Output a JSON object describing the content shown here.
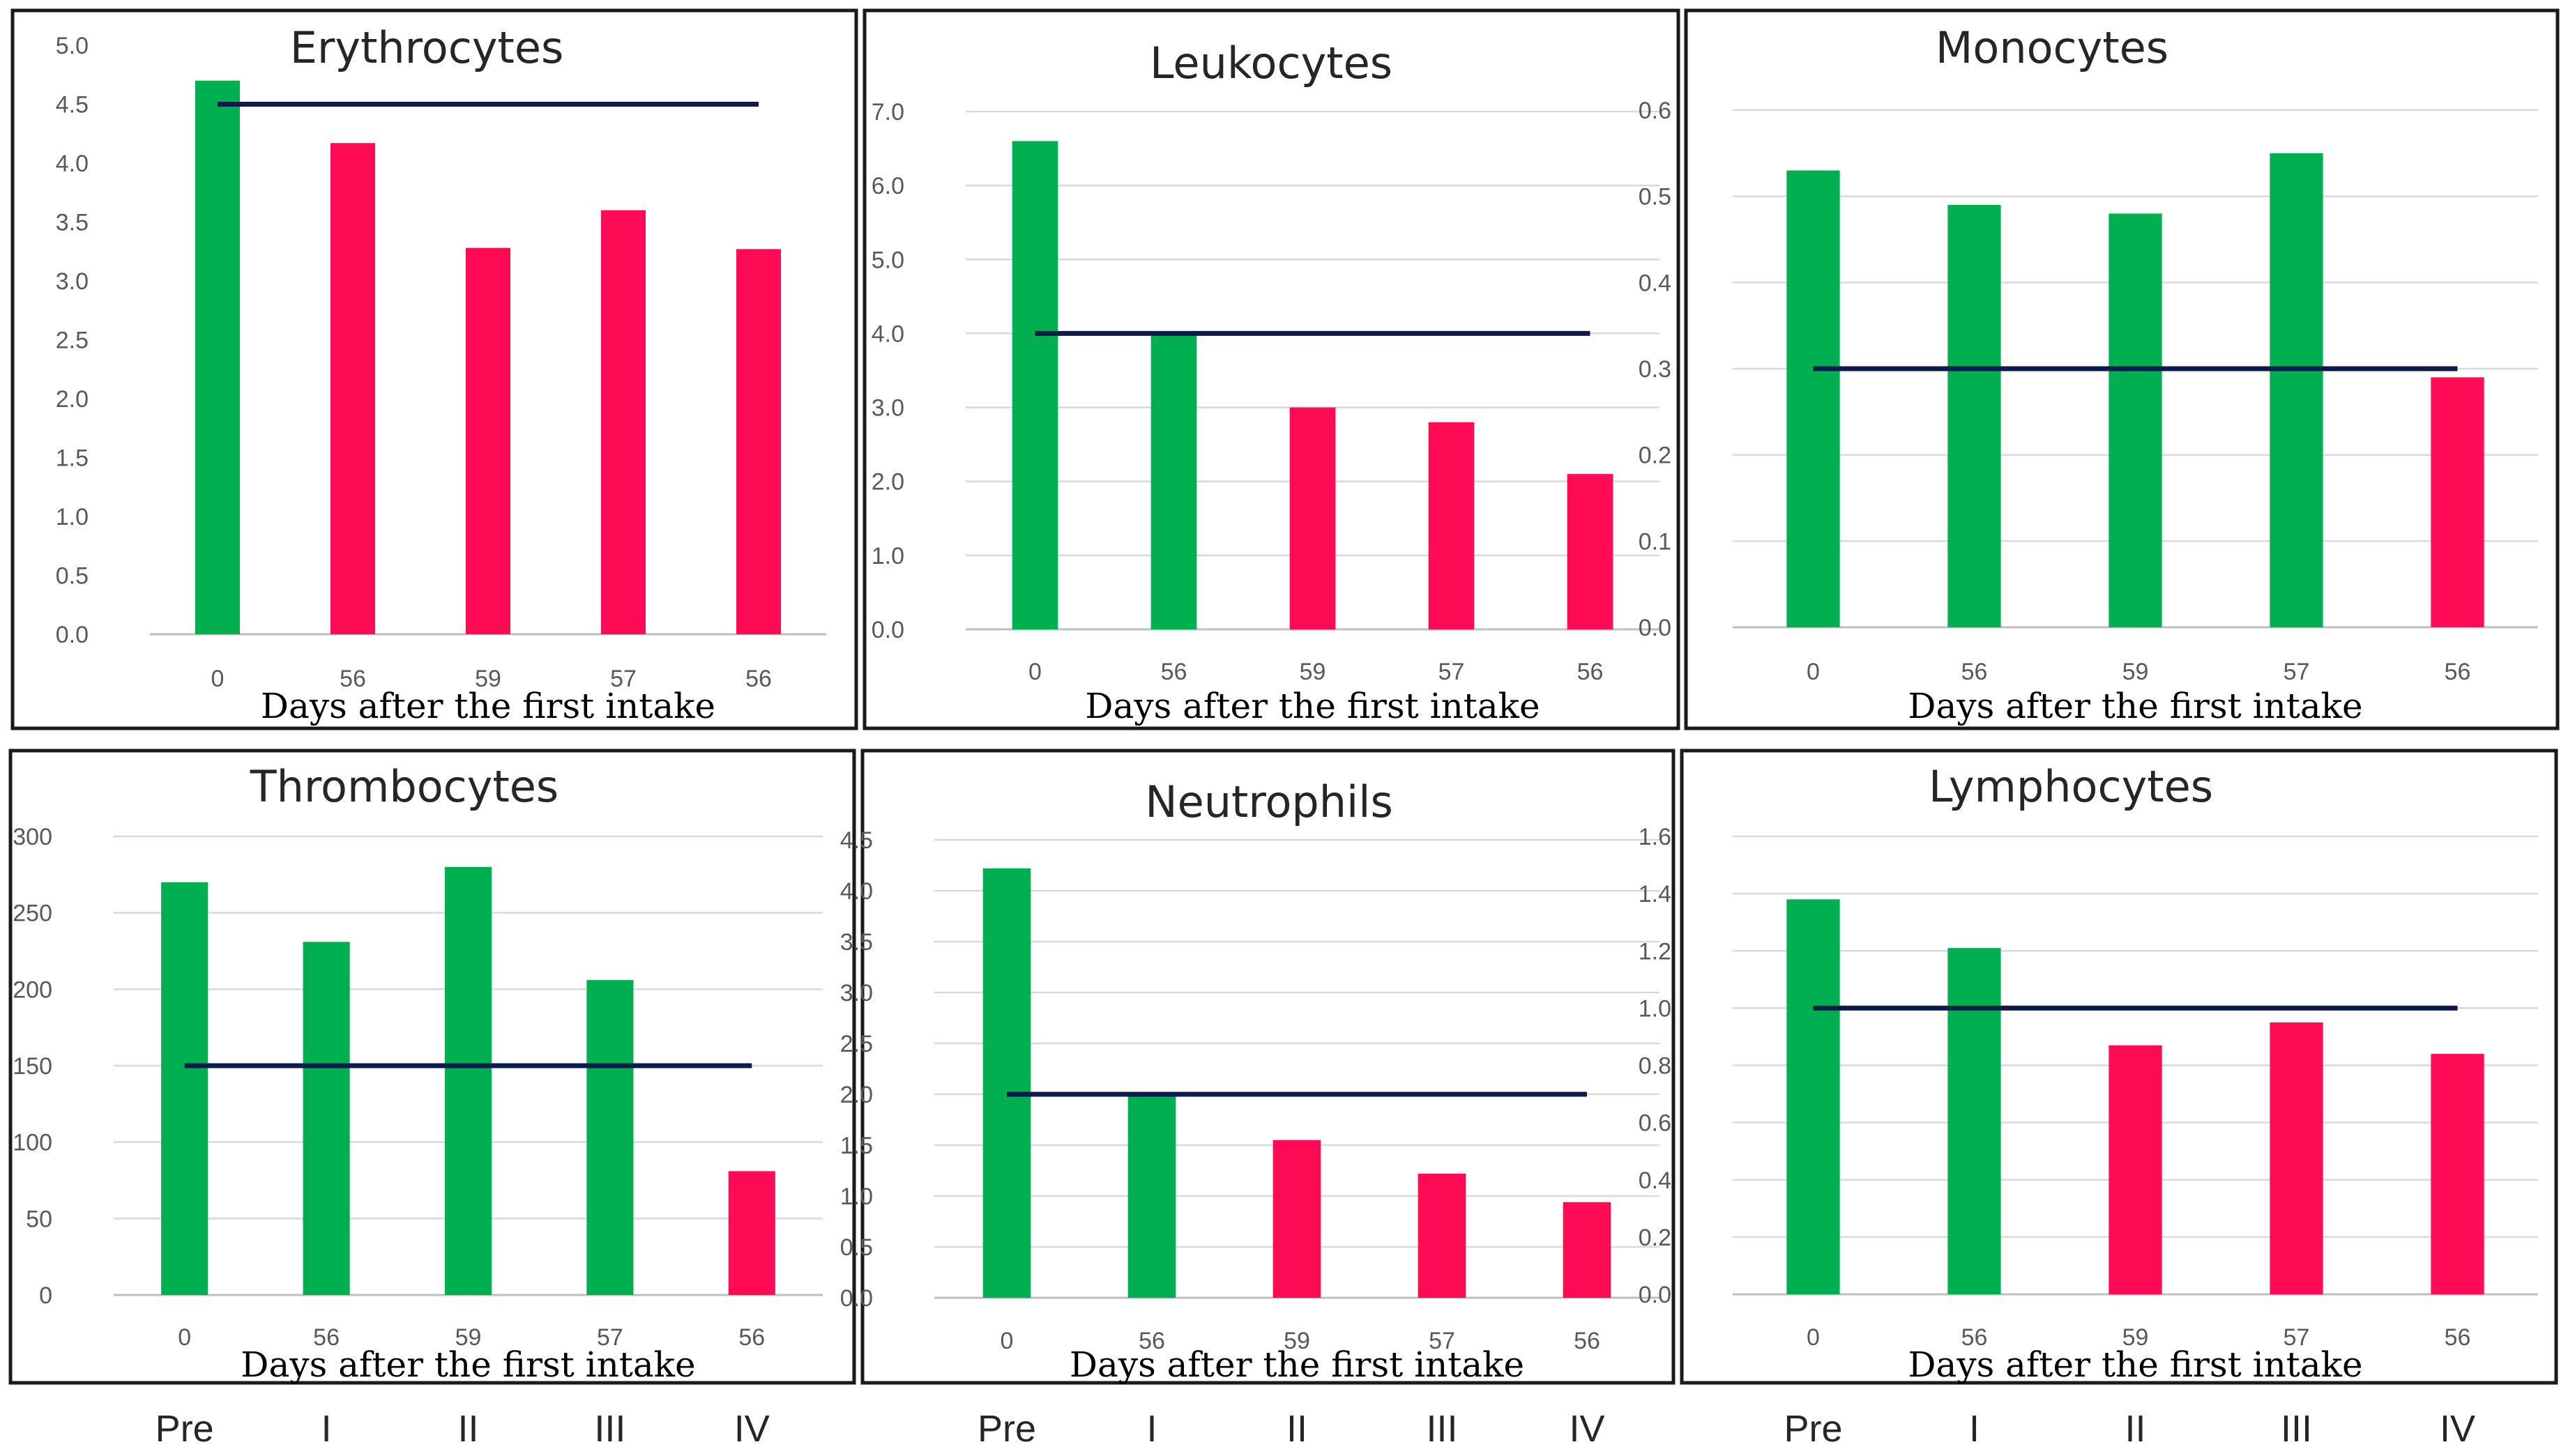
{
  "colors": {
    "above_reference": "#00b050",
    "below_reference": "#ff0a55",
    "reference_line": "#0d1b4c"
  },
  "phase_labels": [
    "Pre",
    "I",
    "II",
    "III",
    "IV"
  ],
  "chart_data": [
    {
      "type": "bar",
      "title": "Erythrocytes",
      "xlabel": "Days after the first intake",
      "ylabel": "",
      "categories": [
        "0",
        "56",
        "59",
        "57",
        "56"
      ],
      "values": [
        4.7,
        4.17,
        3.28,
        3.6,
        3.27
      ],
      "bar_colors": [
        "green",
        "red",
        "red",
        "red",
        "red"
      ],
      "reference_value": 4.5,
      "ylim": [
        0,
        5
      ],
      "yticks": [
        "0.0",
        "0.5",
        "1.0",
        "1.5",
        "2.0",
        "2.5",
        "3.0",
        "3.5",
        "4.0",
        "4.5",
        "5.0"
      ],
      "grid": false
    },
    {
      "type": "bar",
      "title": "Leukocytes",
      "xlabel": "Days after the first intake",
      "ylabel": "",
      "categories": [
        "0",
        "56",
        "59",
        "57",
        "56"
      ],
      "values": [
        6.6,
        4.0,
        3.0,
        2.8,
        2.1
      ],
      "bar_colors": [
        "green",
        "green",
        "red",
        "red",
        "red"
      ],
      "reference_value": 4.0,
      "ylim": [
        0,
        7
      ],
      "yticks": [
        "0.0",
        "1.0",
        "2.0",
        "3.0",
        "4.0",
        "5.0",
        "6.0",
        "7.0"
      ],
      "grid": true
    },
    {
      "type": "bar",
      "title": "Monocytes",
      "xlabel": "Days after the first intake",
      "ylabel": "",
      "categories": [
        "0",
        "56",
        "59",
        "57",
        "56"
      ],
      "values": [
        0.53,
        0.49,
        0.48,
        0.55,
        0.29
      ],
      "bar_colors": [
        "green",
        "green",
        "green",
        "green",
        "red"
      ],
      "reference_value": 0.3,
      "ylim": [
        0,
        0.6
      ],
      "yticks": [
        "0.0",
        "0.1",
        "0.2",
        "0.3",
        "0.4",
        "0.5",
        "0.6"
      ],
      "grid": true
    },
    {
      "type": "bar",
      "title": "Thrombocytes",
      "xlabel": "Days after the first intake",
      "ylabel": "",
      "categories": [
        "0",
        "56",
        "59",
        "57",
        "56"
      ],
      "values": [
        270,
        231,
        280,
        206,
        81
      ],
      "bar_colors": [
        "green",
        "green",
        "green",
        "green",
        "red"
      ],
      "reference_value": 150,
      "ylim": [
        0,
        300
      ],
      "yticks": [
        "0",
        "50",
        "100",
        "150",
        "200",
        "250",
        "300"
      ],
      "grid": true
    },
    {
      "type": "bar",
      "title": "Neutrophils",
      "xlabel": "Days after the first intake",
      "ylabel": "",
      "categories": [
        "0",
        "56",
        "59",
        "57",
        "56"
      ],
      "values": [
        4.22,
        2.0,
        1.55,
        1.22,
        0.94
      ],
      "bar_colors": [
        "green",
        "green",
        "red",
        "red",
        "red"
      ],
      "reference_value": 2.0,
      "ylim": [
        0,
        4.5
      ],
      "yticks": [
        "0.0",
        "0.5",
        "1.0",
        "1.5",
        "2.0",
        "2.5",
        "3.0",
        "3.5",
        "4.0",
        "4.5"
      ],
      "grid": true
    },
    {
      "type": "bar",
      "title": "Lymphocytes",
      "xlabel": "Days after the first intake",
      "ylabel": "",
      "categories": [
        "0",
        "56",
        "59",
        "57",
        "56"
      ],
      "values": [
        1.38,
        1.21,
        0.87,
        0.95,
        0.84
      ],
      "bar_colors": [
        "green",
        "green",
        "red",
        "red",
        "red"
      ],
      "reference_value": 1.0,
      "ylim": [
        0,
        1.6
      ],
      "yticks": [
        "0.0",
        "0.2",
        "0.4",
        "0.6",
        "0.8",
        "1.0",
        "1.2",
        "1.4",
        "1.6"
      ],
      "grid": true
    }
  ]
}
